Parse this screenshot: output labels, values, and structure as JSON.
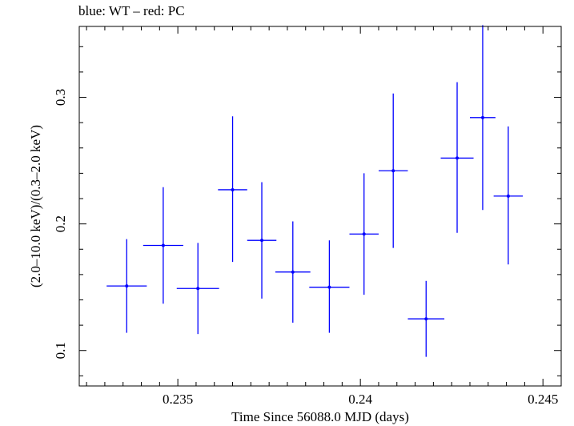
{
  "chart_data": {
    "type": "scatter",
    "title": "blue: WT – red: PC",
    "xlabel": "Time Since 56088.0 MJD (days)",
    "ylabel": "(2.0–10.0 keV)/(0.3–2.0 keV)",
    "xlim": [
      0.2323,
      0.2455
    ],
    "ylim": [
      0.072,
      0.356
    ],
    "x_ticks": [
      0.235,
      0.24,
      0.245
    ],
    "x_tick_labels": [
      "0.235",
      "0.24",
      "0.245"
    ],
    "y_ticks": [
      0.1,
      0.2,
      0.3
    ],
    "y_tick_labels": [
      "0.1",
      "0.2",
      "0.3"
    ],
    "series": [
      {
        "name": "WT",
        "color": "#0000ff",
        "points": [
          {
            "x": 0.2336,
            "xerr": 0.00055,
            "y": 0.151,
            "yerr_low": 0.037,
            "yerr_high": 0.037
          },
          {
            "x": 0.2346,
            "xerr": 0.00055,
            "y": 0.183,
            "yerr_low": 0.046,
            "yerr_high": 0.046
          },
          {
            "x": 0.23555,
            "xerr": 0.00058,
            "y": 0.149,
            "yerr_low": 0.036,
            "yerr_high": 0.036
          },
          {
            "x": 0.2365,
            "xerr": 0.0004,
            "y": 0.227,
            "yerr_low": 0.057,
            "yerr_high": 0.058
          },
          {
            "x": 0.2373,
            "xerr": 0.0004,
            "y": 0.187,
            "yerr_low": 0.046,
            "yerr_high": 0.046
          },
          {
            "x": 0.23815,
            "xerr": 0.00048,
            "y": 0.162,
            "yerr_low": 0.04,
            "yerr_high": 0.04
          },
          {
            "x": 0.23915,
            "xerr": 0.00055,
            "y": 0.15,
            "yerr_low": 0.036,
            "yerr_high": 0.037
          },
          {
            "x": 0.2401,
            "xerr": 0.0004,
            "y": 0.192,
            "yerr_low": 0.048,
            "yerr_high": 0.048
          },
          {
            "x": 0.2409,
            "xerr": 0.0004,
            "y": 0.242,
            "yerr_low": 0.061,
            "yerr_high": 0.061
          },
          {
            "x": 0.2418,
            "xerr": 0.0005,
            "y": 0.125,
            "yerr_low": 0.03,
            "yerr_high": 0.03
          },
          {
            "x": 0.24265,
            "xerr": 0.00045,
            "y": 0.252,
            "yerr_low": 0.059,
            "yerr_high": 0.06
          },
          {
            "x": 0.24335,
            "xerr": 0.00035,
            "y": 0.284,
            "yerr_low": 0.073,
            "yerr_high": 0.073
          },
          {
            "x": 0.24405,
            "xerr": 0.0004,
            "y": 0.222,
            "yerr_low": 0.054,
            "yerr_high": 0.055
          }
        ]
      }
    ]
  }
}
